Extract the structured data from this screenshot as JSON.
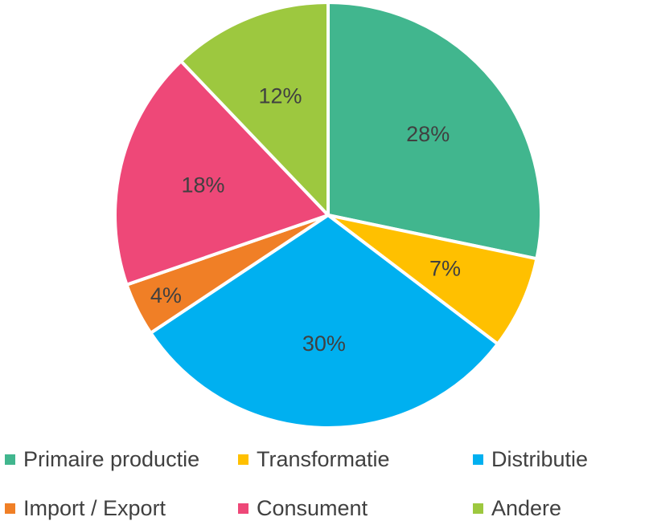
{
  "chart_data": {
    "type": "pie",
    "title": "",
    "start_angle_deg": 0,
    "direction": "clockwise",
    "legend_placement": "bottom",
    "slices": [
      {
        "name": "Primaire productie",
        "value": 28,
        "label": "28%",
        "color": "#41b68e"
      },
      {
        "name": "Transformatie",
        "value": 7,
        "label": "7%",
        "color": "#ffc000"
      },
      {
        "name": "Distributie",
        "value": 30,
        "label": "30%",
        "color": "#00b0f0"
      },
      {
        "name": "Import / Export",
        "value": 4,
        "label": "4%",
        "color": "#f07f26"
      },
      {
        "name": "Consument",
        "value": 18,
        "label": "18%",
        "color": "#ee4878"
      },
      {
        "name": "Andere",
        "value": 12,
        "label": "12%",
        "color": "#9dc83f"
      }
    ]
  }
}
